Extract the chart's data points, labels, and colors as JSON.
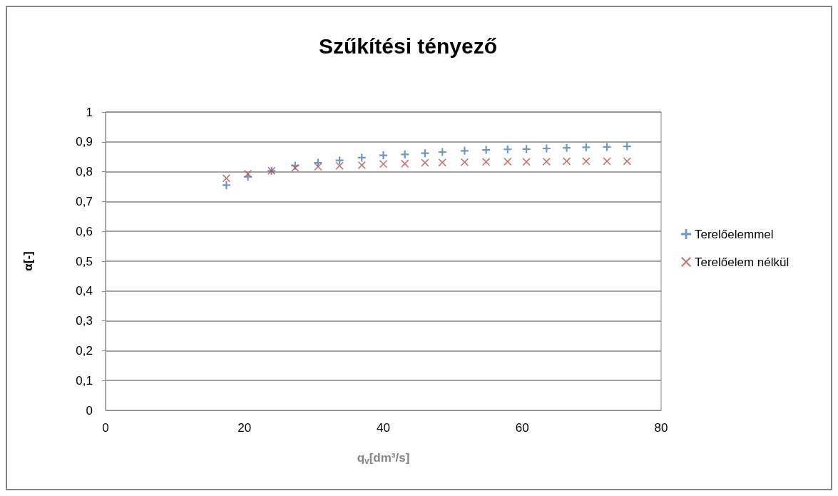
{
  "chart_data": {
    "type": "scatter",
    "title": "Szűkítési tényező",
    "xlabel": "q$_{v}$[dm³/s]",
    "ylabel": "α[-]",
    "x": [
      17.4,
      20.5,
      23.9,
      27.3,
      30.6,
      33.7,
      36.9,
      40.0,
      43.1,
      46.0,
      48.5,
      51.7,
      54.8,
      57.9,
      60.6,
      63.5,
      66.4,
      69.2,
      72.2,
      75.1
    ],
    "series": [
      {
        "name": "Terelőelemmel",
        "color": "#4a7ebb",
        "marker": "plus",
        "values": [
          0.755,
          0.783,
          0.803,
          0.82,
          0.83,
          0.838,
          0.847,
          0.855,
          0.858,
          0.862,
          0.866,
          0.87,
          0.873,
          0.875,
          0.876,
          0.878,
          0.88,
          0.882,
          0.883,
          0.885
        ]
      },
      {
        "name": "Terelőelem nélkül",
        "color": "#be4b48",
        "marker": "cross",
        "values": [
          0.778,
          0.793,
          0.803,
          0.813,
          0.817,
          0.82,
          0.822,
          0.826,
          0.827,
          0.83,
          0.831,
          0.832,
          0.833,
          0.834,
          0.833,
          0.834,
          0.835,
          0.835,
          0.835,
          0.835
        ]
      }
    ],
    "xlim": [
      0,
      80
    ],
    "xticks": [
      0,
      20,
      40,
      60,
      80
    ],
    "ylim": [
      0,
      1
    ],
    "yticks": [
      0,
      {
        "value": 0.1,
        "label": "0,1"
      },
      {
        "value": 0.2,
        "label": "0,2"
      },
      {
        "value": 0.3,
        "label": "0,3"
      },
      {
        "value": 0.4,
        "label": "0,4"
      },
      {
        "value": 0.5,
        "label": "0,5"
      },
      {
        "value": 0.6,
        "label": "0,6"
      },
      {
        "value": 0.7,
        "label": "0,7"
      },
      {
        "value": 0.8,
        "label": "0,8"
      },
      {
        "value": 0.9,
        "label": "0,9"
      },
      1
    ],
    "grid": "y",
    "legend": "right"
  }
}
